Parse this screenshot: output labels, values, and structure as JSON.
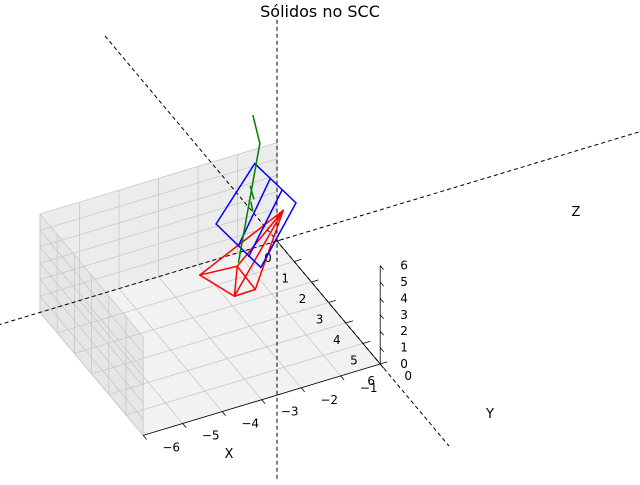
{
  "chart_data": {
    "type": "3d-wireframe",
    "title": "Sólidos no SCC",
    "xlabel": "X",
    "ylabel": "Y",
    "zlabel": "Z",
    "xlim": [
      0,
      6
    ],
    "ylim": [
      -6,
      0
    ],
    "zlim": [
      0,
      6
    ],
    "x_ticks": [
      0,
      1,
      2,
      3,
      4,
      5,
      6
    ],
    "y_ticks": [
      0,
      -1,
      -2,
      -3,
      -4,
      -5,
      -6
    ],
    "z_ticks": [
      0,
      1,
      2,
      3,
      4,
      5,
      6
    ],
    "x_tick_labels": [
      "0",
      "1",
      "2",
      "3",
      "4",
      "5",
      "6"
    ],
    "y_tick_labels": [
      "0",
      "−1",
      "−2",
      "−3",
      "−4",
      "−5",
      "−6"
    ],
    "z_tick_labels": [
      "0",
      "1",
      "2",
      "3",
      "4",
      "5",
      "6"
    ],
    "grid": true,
    "axis_line_color": "#000000",
    "pane_color": "#f2f2f2",
    "grid_color": "#c8c8c8",
    "solids": [
      {
        "color": "#ff0000",
        "vertices": [
          [
            2.2,
            -0.8,
            5.2
          ],
          [
            2.4,
            -3.0,
            3.1
          ],
          [
            3.1,
            -1.9,
            2.3
          ],
          [
            5.1,
            -3.3,
            5.4
          ],
          [
            3.2,
            -2.4,
            4.2
          ]
        ],
        "edges": [
          [
            0,
            1
          ],
          [
            0,
            2
          ],
          [
            0,
            3
          ],
          [
            1,
            3
          ],
          [
            2,
            3
          ],
          [
            0,
            4
          ],
          [
            1,
            4
          ],
          [
            2,
            4
          ],
          [
            3,
            4
          ]
        ]
      },
      {
        "color": "#0000ff",
        "vertices": [
          [
            1.0,
            -1.0,
            6.7
          ],
          [
            3.4,
            -1.0,
            7.3
          ],
          [
            4.8,
            -2.5,
            6.2
          ],
          [
            2.2,
            -2.5,
            5.6
          ],
          [
            1.9,
            -1.0,
            6.9
          ],
          [
            3.5,
            -2.5,
            5.9
          ],
          [
            2.6,
            -1.0,
            7.1
          ],
          [
            4.1,
            -2.5,
            6.0
          ]
        ],
        "edges": [
          [
            0,
            1
          ],
          [
            1,
            2
          ],
          [
            2,
            3
          ],
          [
            3,
            0
          ],
          [
            4,
            5
          ],
          [
            6,
            7
          ]
        ]
      },
      {
        "color": "#008000",
        "vertices": [
          [
            0.9,
            -1.0,
            9.5
          ],
          [
            1.3,
            -1.0,
            8.3
          ],
          [
            5.8,
            -3.5,
            8.5
          ],
          [
            3.7,
            -2.2,
            8.8
          ],
          [
            3.5,
            -2.2,
            9.3
          ],
          [
            4.1,
            -2.4,
            8.7
          ],
          [
            4.0,
            -2.4,
            9.1
          ]
        ],
        "edges": [
          [
            0,
            1
          ],
          [
            1,
            2
          ],
          [
            3,
            4
          ],
          [
            5,
            6
          ]
        ]
      }
    ]
  }
}
